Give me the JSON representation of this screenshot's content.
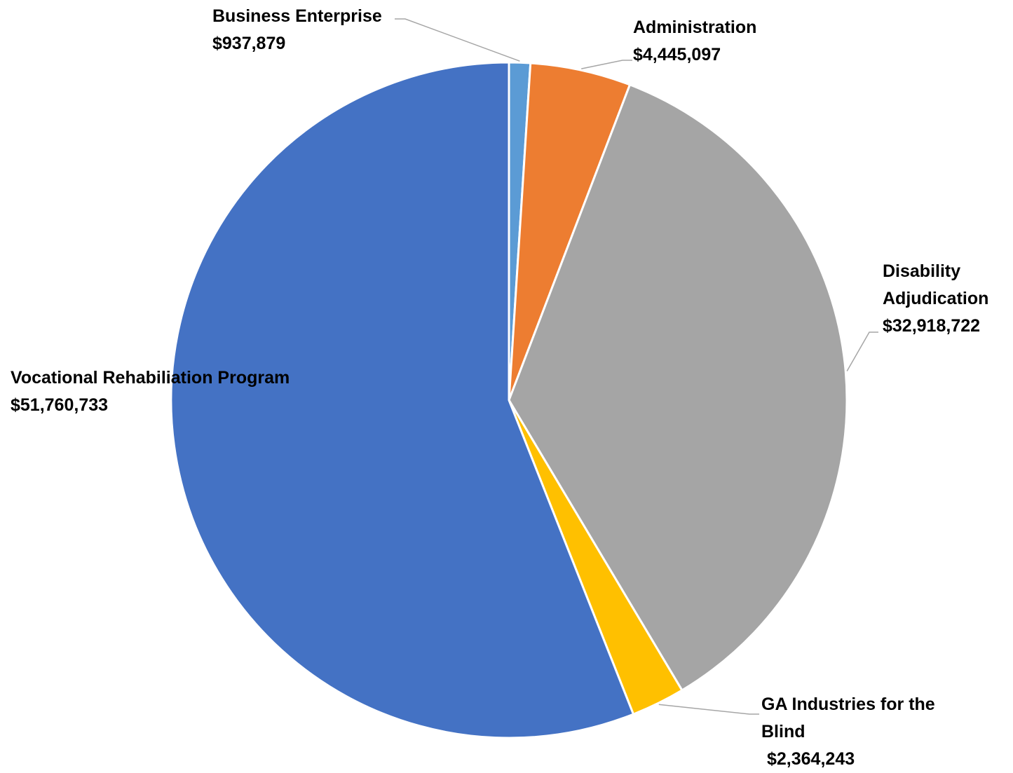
{
  "chart_data": {
    "type": "pie",
    "slices": [
      {
        "label": "Business Enterprise",
        "value_label": "$937,879",
        "value": 937879,
        "color": "#5B9BD5"
      },
      {
        "label": "Administration",
        "value_label": "$4,445,097",
        "value": 4445097,
        "color": "#ED7D31"
      },
      {
        "label": "Disability Adjudication",
        "label_lines": [
          "Disability",
          "Adjudication"
        ],
        "value_label": "$32,918,722",
        "value": 32918722,
        "color": "#A5A5A5"
      },
      {
        "label": "GA Industries for the Blind",
        "label_lines": [
          "GA Industries for the",
          "Blind"
        ],
        "value_label": "$2,364,243",
        "value": 2364243,
        "color": "#FFC000"
      },
      {
        "label": "Vocational Rehabiliation Program",
        "value_label": "$51,760,733",
        "value": 51760733,
        "color": "#4472C4"
      }
    ],
    "start_angle": "12 o'clock",
    "direction": "clockwise",
    "legend": "none",
    "data_labels": "outside with leader lines"
  }
}
